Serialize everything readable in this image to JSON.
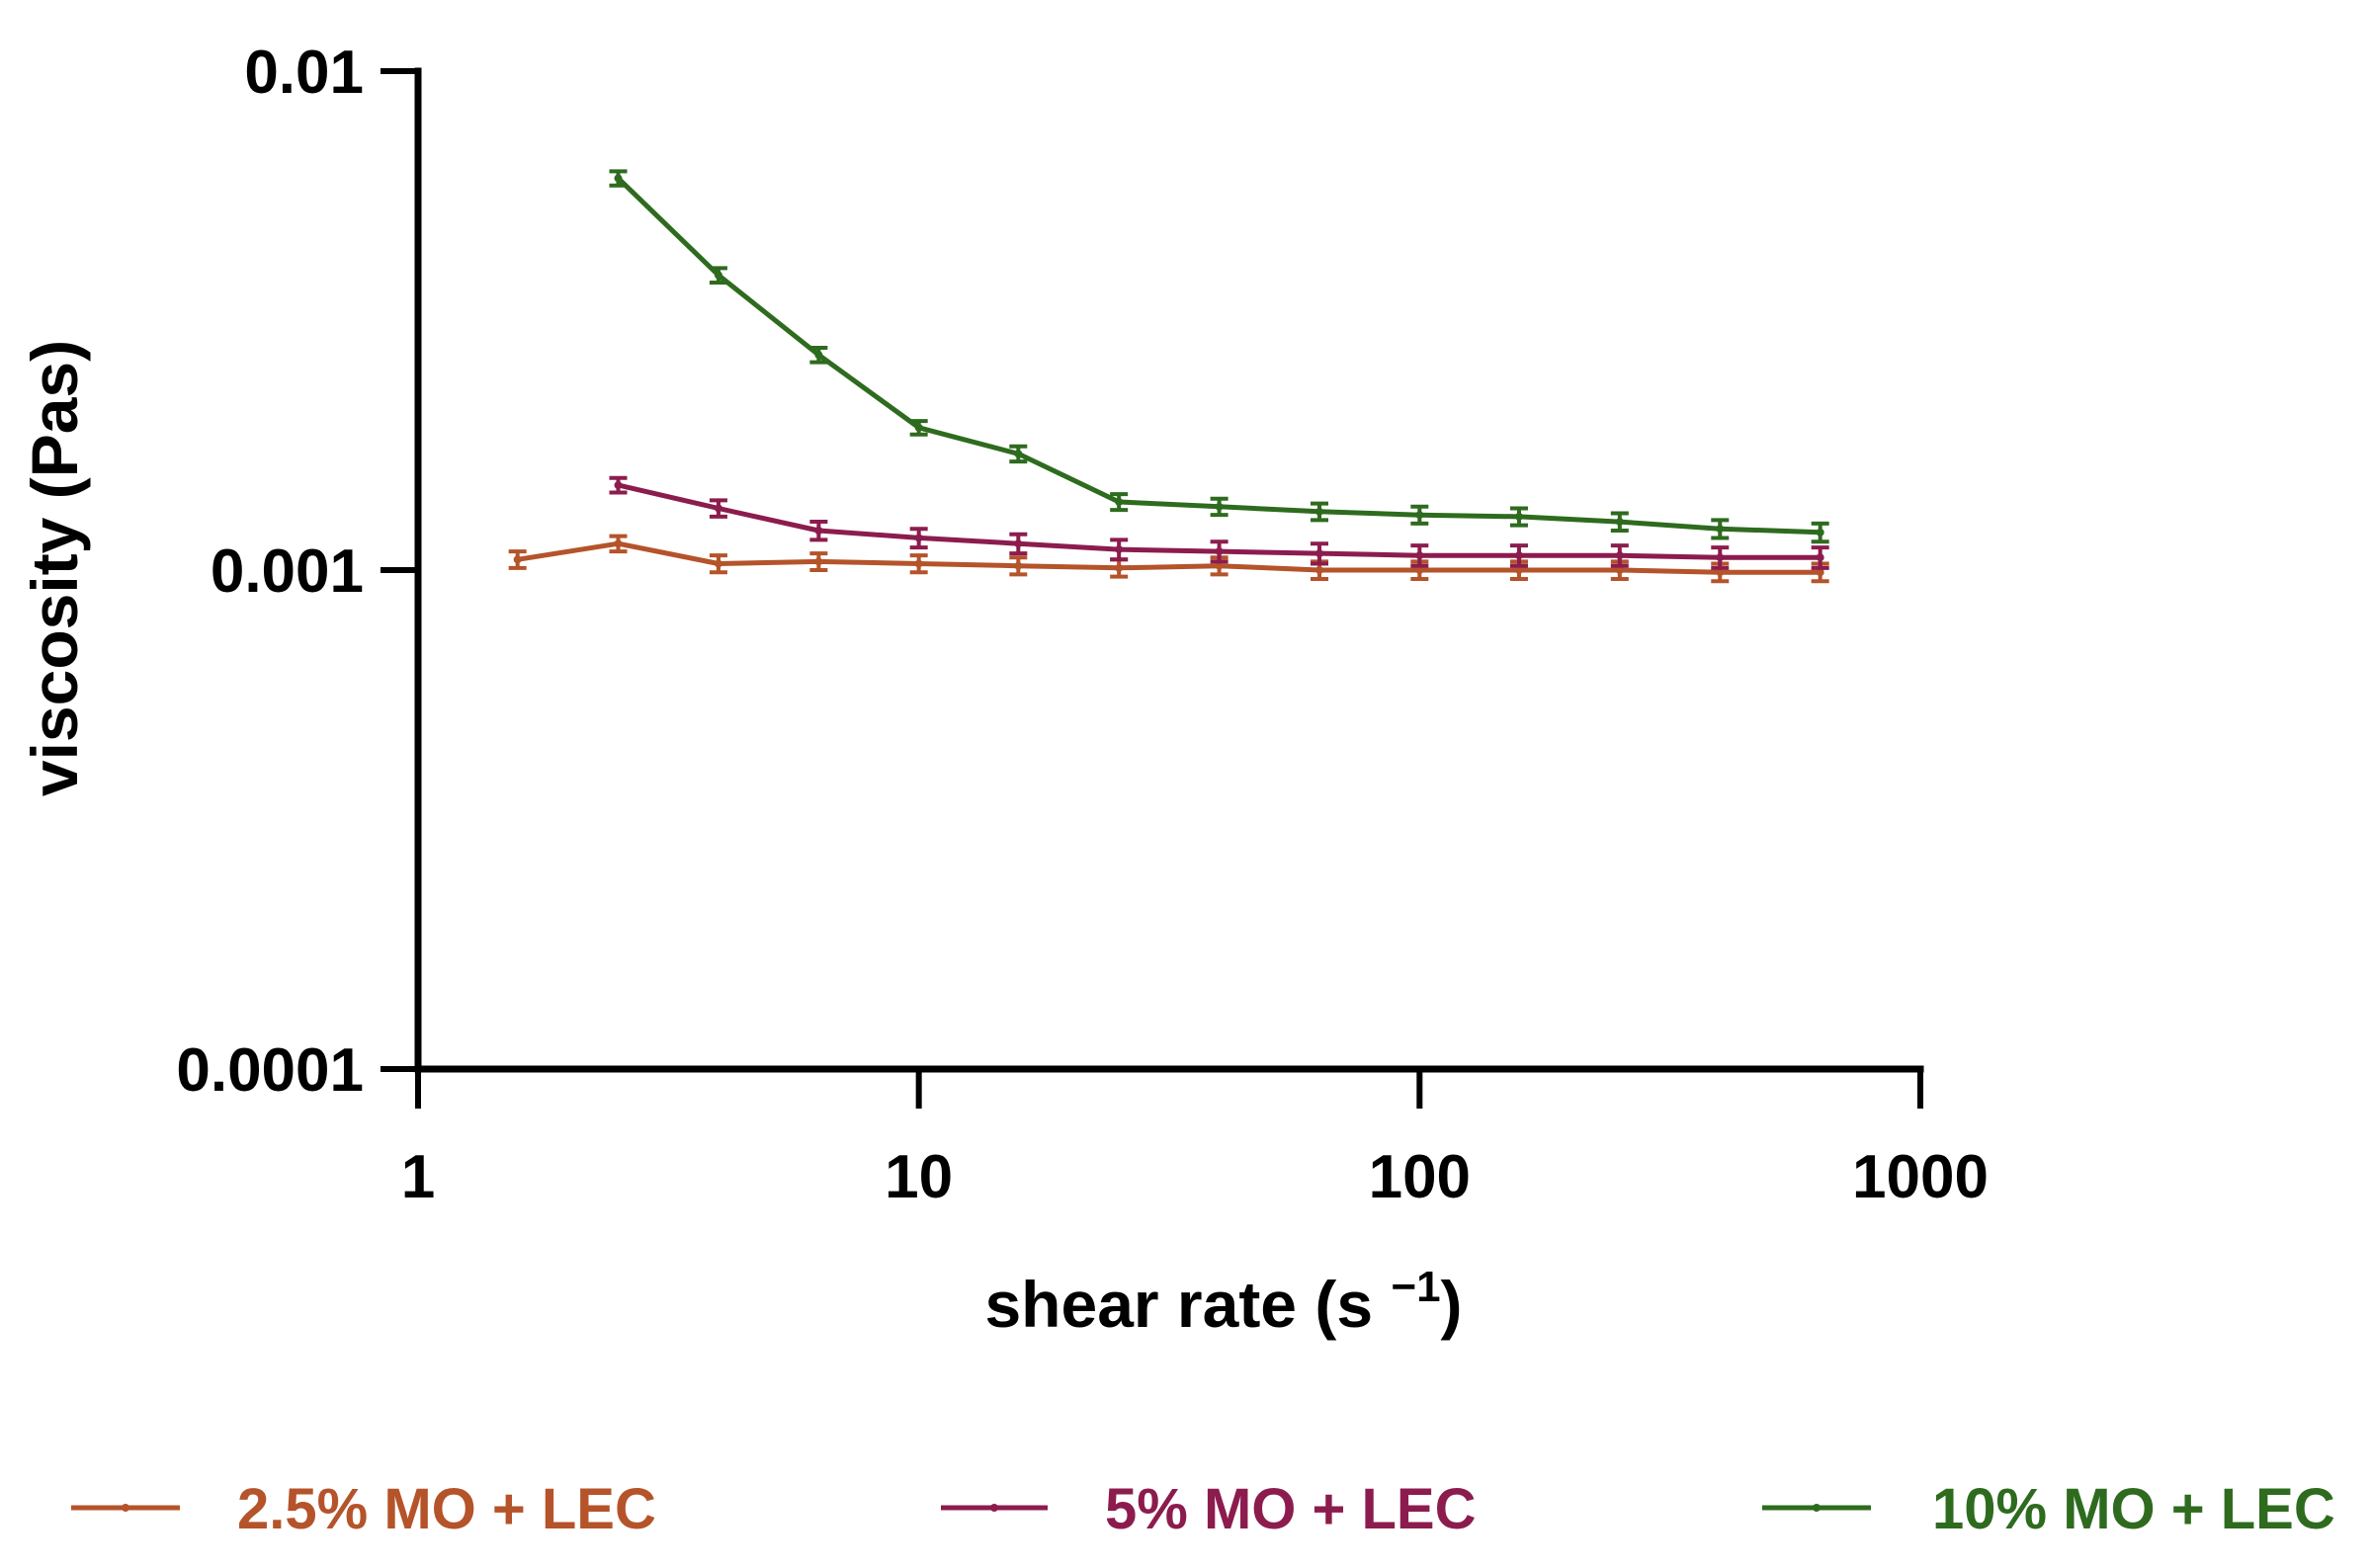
{
  "chart_data": {
    "type": "line",
    "title": "",
    "xlabel": "shear rate (s",
    "xlabel_superscript": "−1",
    "xlabel_close": ")",
    "ylabel": "viscosity (Pas)",
    "xscale": "log",
    "yscale": "log",
    "xlim": [
      1,
      1000
    ],
    "ylim": [
      0.0001,
      0.01
    ],
    "x_ticks": [
      1,
      10,
      100,
      1000
    ],
    "x_tick_labels": [
      "1",
      "10",
      "100",
      "1000"
    ],
    "y_ticks": [
      0.0001,
      0.001,
      0.01
    ],
    "y_tick_labels": [
      "0.0001",
      "0.001",
      "0.01"
    ],
    "grid": false,
    "legend_position": "bottom",
    "series": [
      {
        "name": "2.5% MO + LEC",
        "color": "#b5532a",
        "x": [
          1.58,
          2.51,
          3.98,
          6.31,
          10,
          15.8,
          25.1,
          39.8,
          63.1,
          100,
          158,
          251,
          398,
          631
        ],
        "y": [
          0.00105,
          0.00113,
          0.00103,
          0.00104,
          0.00103,
          0.00102,
          0.00101,
          0.00102,
          0.001,
          0.001,
          0.001,
          0.001,
          0.00099,
          0.00099
        ],
        "yerr": [
          4e-05,
          4e-05,
          4e-05,
          4e-05,
          4e-05,
          4e-05,
          4e-05,
          4e-05,
          4e-05,
          4e-05,
          4e-05,
          4e-05,
          4e-05,
          4e-05
        ]
      },
      {
        "name": "5% MO + LEC",
        "color": "#8c1c4e",
        "x": [
          2.51,
          3.98,
          6.31,
          10,
          15.8,
          25.1,
          39.8,
          63.1,
          100,
          158,
          251,
          398,
          631
        ],
        "y": [
          0.00148,
          0.00133,
          0.0012,
          0.00116,
          0.00113,
          0.0011,
          0.00109,
          0.00108,
          0.00107,
          0.00107,
          0.00107,
          0.00106,
          0.00106
        ],
        "yerr": [
          5e-05,
          5e-05,
          5e-05,
          5e-05,
          5e-05,
          5e-05,
          5e-05,
          5e-05,
          5e-05,
          5e-05,
          5e-05,
          5e-05,
          5e-05
        ]
      },
      {
        "name": "10% MO + LEC",
        "color": "#2e6b1e",
        "x": [
          2.51,
          3.98,
          6.31,
          10,
          15.8,
          25.1,
          39.8,
          63.1,
          100,
          158,
          251,
          398,
          631
        ],
        "y": [
          0.0061,
          0.0039,
          0.0027,
          0.00193,
          0.00171,
          0.00137,
          0.00134,
          0.00131,
          0.00129,
          0.00128,
          0.00125,
          0.00121,
          0.00119
        ],
        "yerr": [
          0.0002,
          0.00013,
          9e-05,
          6e-05,
          6e-05,
          5e-05,
          5e-05,
          5e-05,
          5e-05,
          5e-05,
          5e-05,
          5e-05,
          5e-05
        ]
      }
    ]
  }
}
